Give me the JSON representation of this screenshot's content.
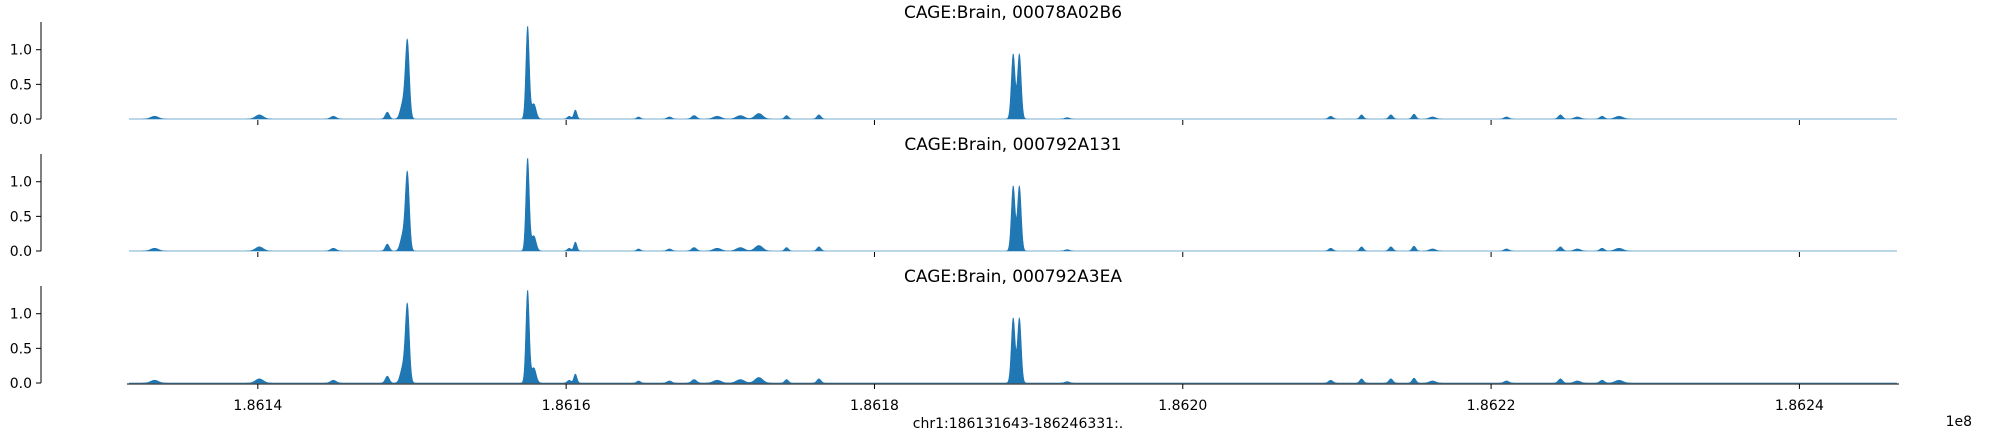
{
  "chart_data": [
    {
      "type": "area",
      "title": "CAGE:Brain, 00078A02B6",
      "yticks": [
        0.0,
        0.5,
        1.0
      ],
      "ytick_labels": [
        "0.0",
        "0.5",
        "1.0"
      ],
      "ylim": [
        0,
        1.4
      ],
      "color": "#1f77b4",
      "xlim": [
        186131643,
        186246331
      ],
      "peaks": [
        {
          "x": 186133300,
          "y": 0.04,
          "w": 250
        },
        {
          "x": 186140100,
          "y": 0.06,
          "w": 250
        },
        {
          "x": 186144900,
          "y": 0.04,
          "w": 180
        },
        {
          "x": 186148400,
          "y": 0.1,
          "w": 130
        },
        {
          "x": 186149400,
          "y": 0.22,
          "w": 160
        },
        {
          "x": 186149700,
          "y": 1.12,
          "w": 130
        },
        {
          "x": 186157500,
          "y": 1.34,
          "w": 110
        },
        {
          "x": 186157900,
          "y": 0.22,
          "w": 150
        },
        {
          "x": 186160600,
          "y": 0.13,
          "w": 100
        },
        {
          "x": 186160200,
          "y": 0.04,
          "w": 120
        },
        {
          "x": 186164700,
          "y": 0.03,
          "w": 120
        },
        {
          "x": 186166700,
          "y": 0.03,
          "w": 150
        },
        {
          "x": 186168300,
          "y": 0.05,
          "w": 160
        },
        {
          "x": 186169800,
          "y": 0.04,
          "w": 250
        },
        {
          "x": 186171300,
          "y": 0.05,
          "w": 260
        },
        {
          "x": 186172500,
          "y": 0.08,
          "w": 250
        },
        {
          "x": 186174300,
          "y": 0.05,
          "w": 120
        },
        {
          "x": 186176400,
          "y": 0.06,
          "w": 130
        },
        {
          "x": 186189000,
          "y": 0.94,
          "w": 120
        },
        {
          "x": 186189400,
          "y": 0.94,
          "w": 120
        },
        {
          "x": 186192500,
          "y": 0.02,
          "w": 150
        },
        {
          "x": 186209600,
          "y": 0.04,
          "w": 140
        },
        {
          "x": 186211600,
          "y": 0.06,
          "w": 120
        },
        {
          "x": 186213500,
          "y": 0.06,
          "w": 130
        },
        {
          "x": 186215000,
          "y": 0.07,
          "w": 120
        },
        {
          "x": 186216200,
          "y": 0.03,
          "w": 200
        },
        {
          "x": 186221000,
          "y": 0.03,
          "w": 150
        },
        {
          "x": 186224500,
          "y": 0.06,
          "w": 140
        },
        {
          "x": 186225600,
          "y": 0.03,
          "w": 200
        },
        {
          "x": 186227200,
          "y": 0.04,
          "w": 150
        },
        {
          "x": 186228300,
          "y": 0.04,
          "w": 250
        }
      ]
    },
    {
      "type": "area",
      "title": "CAGE:Brain, 000792A131",
      "yticks": [
        0.0,
        0.5,
        1.0
      ],
      "ytick_labels": [
        "0.0",
        "0.5",
        "1.0"
      ],
      "ylim": [
        0,
        1.4
      ],
      "color": "#1f77b4",
      "xlim": [
        186131643,
        186246331
      ],
      "peaks": [
        {
          "x": 186133300,
          "y": 0.04,
          "w": 250
        },
        {
          "x": 186140100,
          "y": 0.06,
          "w": 250
        },
        {
          "x": 186144900,
          "y": 0.04,
          "w": 180
        },
        {
          "x": 186148400,
          "y": 0.1,
          "w": 130
        },
        {
          "x": 186149400,
          "y": 0.22,
          "w": 160
        },
        {
          "x": 186149700,
          "y": 1.12,
          "w": 130
        },
        {
          "x": 186157500,
          "y": 1.34,
          "w": 110
        },
        {
          "x": 186157900,
          "y": 0.22,
          "w": 150
        },
        {
          "x": 186160600,
          "y": 0.13,
          "w": 100
        },
        {
          "x": 186160200,
          "y": 0.04,
          "w": 120
        },
        {
          "x": 186164700,
          "y": 0.03,
          "w": 120
        },
        {
          "x": 186166700,
          "y": 0.03,
          "w": 150
        },
        {
          "x": 186168300,
          "y": 0.05,
          "w": 160
        },
        {
          "x": 186169800,
          "y": 0.04,
          "w": 250
        },
        {
          "x": 186171300,
          "y": 0.05,
          "w": 260
        },
        {
          "x": 186172500,
          "y": 0.08,
          "w": 250
        },
        {
          "x": 186174300,
          "y": 0.05,
          "w": 120
        },
        {
          "x": 186176400,
          "y": 0.06,
          "w": 130
        },
        {
          "x": 186189000,
          "y": 0.94,
          "w": 120
        },
        {
          "x": 186189400,
          "y": 0.94,
          "w": 120
        },
        {
          "x": 186192500,
          "y": 0.02,
          "w": 150
        },
        {
          "x": 186209600,
          "y": 0.04,
          "w": 140
        },
        {
          "x": 186211600,
          "y": 0.06,
          "w": 120
        },
        {
          "x": 186213500,
          "y": 0.06,
          "w": 130
        },
        {
          "x": 186215000,
          "y": 0.07,
          "w": 120
        },
        {
          "x": 186216200,
          "y": 0.03,
          "w": 200
        },
        {
          "x": 186221000,
          "y": 0.03,
          "w": 150
        },
        {
          "x": 186224500,
          "y": 0.06,
          "w": 140
        },
        {
          "x": 186225600,
          "y": 0.03,
          "w": 200
        },
        {
          "x": 186227200,
          "y": 0.04,
          "w": 150
        },
        {
          "x": 186228300,
          "y": 0.04,
          "w": 250
        }
      ]
    },
    {
      "type": "area",
      "title": "CAGE:Brain, 000792A3EA",
      "yticks": [
        0.0,
        0.5,
        1.0
      ],
      "ytick_labels": [
        "0.0",
        "0.5",
        "1.0"
      ],
      "ylim": [
        0,
        1.4
      ],
      "color": "#1f77b4",
      "xlim": [
        186131643,
        186246331
      ],
      "peaks": [
        {
          "x": 186133300,
          "y": 0.04,
          "w": 250
        },
        {
          "x": 186140100,
          "y": 0.06,
          "w": 250
        },
        {
          "x": 186144900,
          "y": 0.04,
          "w": 180
        },
        {
          "x": 186148400,
          "y": 0.1,
          "w": 130
        },
        {
          "x": 186149400,
          "y": 0.22,
          "w": 160
        },
        {
          "x": 186149700,
          "y": 1.12,
          "w": 130
        },
        {
          "x": 186157500,
          "y": 1.34,
          "w": 110
        },
        {
          "x": 186157900,
          "y": 0.22,
          "w": 150
        },
        {
          "x": 186160600,
          "y": 0.13,
          "w": 100
        },
        {
          "x": 186160200,
          "y": 0.04,
          "w": 120
        },
        {
          "x": 186164700,
          "y": 0.03,
          "w": 120
        },
        {
          "x": 186166700,
          "y": 0.03,
          "w": 150
        },
        {
          "x": 186168300,
          "y": 0.05,
          "w": 160
        },
        {
          "x": 186169800,
          "y": 0.04,
          "w": 250
        },
        {
          "x": 186171300,
          "y": 0.05,
          "w": 260
        },
        {
          "x": 186172500,
          "y": 0.08,
          "w": 250
        },
        {
          "x": 186174300,
          "y": 0.05,
          "w": 120
        },
        {
          "x": 186176400,
          "y": 0.06,
          "w": 130
        },
        {
          "x": 186189000,
          "y": 0.94,
          "w": 120
        },
        {
          "x": 186189400,
          "y": 0.94,
          "w": 120
        },
        {
          "x": 186192500,
          "y": 0.02,
          "w": 150
        },
        {
          "x": 186209600,
          "y": 0.04,
          "w": 140
        },
        {
          "x": 186211600,
          "y": 0.06,
          "w": 120
        },
        {
          "x": 186213500,
          "y": 0.06,
          "w": 130
        },
        {
          "x": 186215000,
          "y": 0.07,
          "w": 120
        },
        {
          "x": 186216200,
          "y": 0.03,
          "w": 200
        },
        {
          "x": 186221000,
          "y": 0.03,
          "w": 150
        },
        {
          "x": 186224500,
          "y": 0.06,
          "w": 140
        },
        {
          "x": 186225600,
          "y": 0.03,
          "w": 200
        },
        {
          "x": 186227200,
          "y": 0.04,
          "w": 150
        },
        {
          "x": 186228300,
          "y": 0.04,
          "w": 250
        }
      ]
    }
  ],
  "shared_x_axis": {
    "xlabel": "chr1:186131643-186246331:.",
    "offset_label": "1e8",
    "ticks": [
      186140000,
      186160000,
      186180000,
      186200000,
      186220000,
      186240000
    ],
    "tick_labels": [
      "1.8614",
      "1.8616",
      "1.8618",
      "1.8620",
      "1.8622",
      "1.8624"
    ]
  }
}
